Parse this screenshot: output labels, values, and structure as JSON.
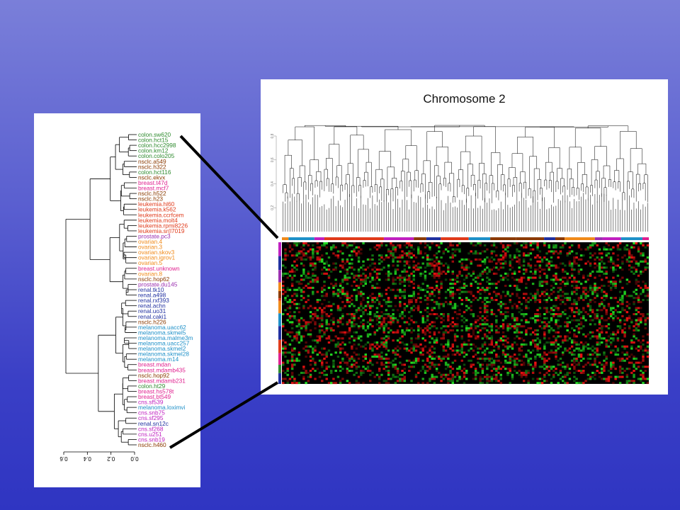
{
  "left_panel": {
    "leaves": [
      {
        "label": "colon.sw620",
        "color": "#2e8b2e"
      },
      {
        "label": "colon.hct15",
        "color": "#2e8b2e"
      },
      {
        "label": "colon.hcc2998",
        "color": "#2e8b2e"
      },
      {
        "label": "colon.km12",
        "color": "#2e8b2e"
      },
      {
        "label": "colon.colo205",
        "color": "#2e8b2e"
      },
      {
        "label": "nsclc.a549",
        "color": "#8b3a00"
      },
      {
        "label": "nsclc.h322",
        "color": "#8b3a00"
      },
      {
        "label": "colon.hct116",
        "color": "#2e8b2e"
      },
      {
        "label": "nsclc.ekvx",
        "color": "#8b3a00"
      },
      {
        "label": "breast.t47d",
        "color": "#e0208f"
      },
      {
        "label": "breast.mcf7",
        "color": "#e0208f"
      },
      {
        "label": "nsclc.h522",
        "color": "#8b3a00"
      },
      {
        "label": "nsclc.h23",
        "color": "#8b3a00"
      },
      {
        "label": "leukemia.hl60",
        "color": "#e03a1a"
      },
      {
        "label": "leukemia.k562",
        "color": "#e03a1a"
      },
      {
        "label": "leukemia.ccrfcem",
        "color": "#e03a1a"
      },
      {
        "label": "leukemia.molt4",
        "color": "#e03a1a"
      },
      {
        "label": "leukemia.rpmi8226",
        "color": "#e03a1a"
      },
      {
        "label": "leukemia.sr(l7019",
        "color": "#e03a1a"
      },
      {
        "label": "prostate.pc3",
        "color": "#9b30b0"
      },
      {
        "label": "ovarian.4",
        "color": "#f08a1a"
      },
      {
        "label": "ovarian.3",
        "color": "#f08a1a"
      },
      {
        "label": "ovarian.skov3",
        "color": "#f08a1a"
      },
      {
        "label": "ovarian.igrov1",
        "color": "#f08a1a"
      },
      {
        "label": "ovarian.5",
        "color": "#f08a1a"
      },
      {
        "label": "breast.unknown",
        "color": "#e0208f"
      },
      {
        "label": "ovarian.8",
        "color": "#f08a1a"
      },
      {
        "label": "nsclc.hop62",
        "color": "#8b3a00"
      },
      {
        "label": "prostate.du145",
        "color": "#9b30b0"
      },
      {
        "label": "renal.tk10",
        "color": "#2030a0"
      },
      {
        "label": "renal.a498",
        "color": "#2030a0"
      },
      {
        "label": "renal.rxf393",
        "color": "#2030a0"
      },
      {
        "label": "renal.achn",
        "color": "#2030a0"
      },
      {
        "label": "renal.uo31",
        "color": "#2030a0"
      },
      {
        "label": "renal.caki1",
        "color": "#2030a0"
      },
      {
        "label": "nsclc.h226",
        "color": "#8b3a00"
      },
      {
        "label": "melanoma.uacc62",
        "color": "#1e90c8"
      },
      {
        "label": "melanoma.skmel5",
        "color": "#1e90c8"
      },
      {
        "label": "melanoma.malme3m",
        "color": "#1e90c8"
      },
      {
        "label": "melanoma.uacc257",
        "color": "#1e90c8"
      },
      {
        "label": "melanoma.skmel2",
        "color": "#1e90c8"
      },
      {
        "label": "melanoma.skmel28",
        "color": "#1e90c8"
      },
      {
        "label": "melanoma.m14",
        "color": "#1e90c8"
      },
      {
        "label": "breast.mdan",
        "color": "#e0208f"
      },
      {
        "label": "breast.mdamb435",
        "color": "#e0208f"
      },
      {
        "label": "nsclc.hop92",
        "color": "#8b3a00"
      },
      {
        "label": "breast.mdamb231",
        "color": "#e0208f"
      },
      {
        "label": "colon.ht29",
        "color": "#2e8b2e"
      },
      {
        "label": "breast.hs578t",
        "color": "#e0208f"
      },
      {
        "label": "breast.bt549",
        "color": "#e0208f"
      },
      {
        "label": "cns.sf539",
        "color": "#c020c0"
      },
      {
        "label": "melanoma.loximvi",
        "color": "#1e90c8"
      },
      {
        "label": "cns.snb75",
        "color": "#c020c0"
      },
      {
        "label": "cns.sf295",
        "color": "#c020c0"
      },
      {
        "label": "renal.sn12c",
        "color": "#2030a0"
      },
      {
        "label": "cns.sf268",
        "color": "#c020c0"
      },
      {
        "label": "cns.u251",
        "color": "#c020c0"
      },
      {
        "label": "cns.snb19",
        "color": "#c020c0"
      },
      {
        "label": "nsclc.h460",
        "color": "#8b3a00"
      }
    ],
    "axis_ticks": [
      "0.6",
      "0.4",
      "0.2",
      "0.0"
    ]
  },
  "right_panel": {
    "title": "Chromosome 2",
    "yaxis_ticks": [
      "0.8",
      "0.6",
      "0.4",
      "0.2"
    ]
  },
  "colors": {
    "heat_green": "#22dd22",
    "heat_red": "#ee1111",
    "heat_black": "#000000"
  }
}
